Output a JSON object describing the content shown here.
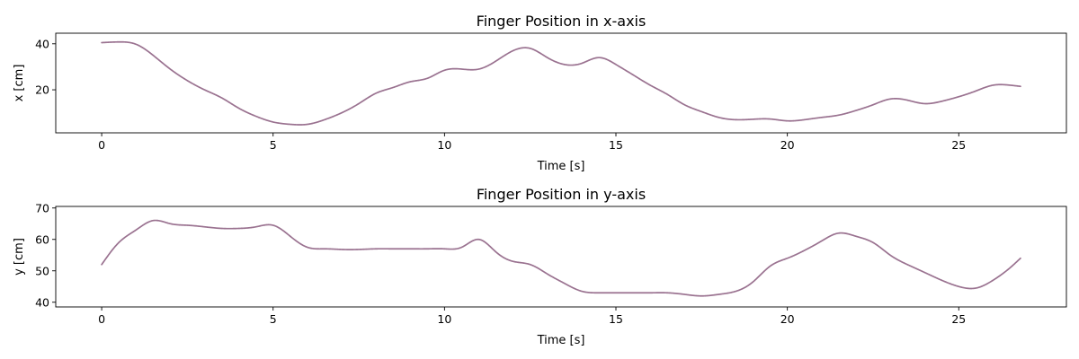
{
  "chart_data": [
    {
      "type": "line",
      "title": "Finger Position in x-axis",
      "xlabel": "Time [s]",
      "ylabel": "x [cm]",
      "xlim": [
        -1.34,
        28.14
      ],
      "ylim": [
        1.3,
        44.6
      ],
      "xticks": [
        0,
        5,
        10,
        15,
        20,
        25
      ],
      "xtick_labels": [
        "0",
        "5",
        "10",
        "15",
        "20",
        "25"
      ],
      "yticks": [
        20,
        40
      ],
      "ytick_labels": [
        "20",
        "40"
      ],
      "color": "#9a7290",
      "grid": false,
      "series": [
        {
          "x": [
            0,
            0.5,
            1,
            1.5,
            2,
            2.5,
            3,
            3.5,
            4,
            4.5,
            5,
            5.5,
            6,
            6.5,
            7,
            7.5,
            8,
            8.5,
            9,
            9.5,
            10,
            10.5,
            11,
            11.5,
            12,
            12.5,
            13,
            13.5,
            14,
            14.5,
            15,
            15.5,
            16,
            16.5,
            17,
            17.5,
            18,
            18.5,
            19,
            19.5,
            20,
            20.5,
            21,
            21.5,
            22,
            22.5,
            23,
            23.5,
            24,
            24.5,
            25,
            25.5,
            26,
            26.5,
            26.8
          ],
          "values": [
            40.5,
            40.8,
            39.8,
            35,
            29,
            24,
            20,
            16.5,
            12,
            8.5,
            6,
            5,
            5,
            7,
            10,
            14,
            18.5,
            21,
            23.5,
            25,
            28.5,
            29,
            29,
            32.5,
            37,
            38,
            34,
            31,
            31.5,
            34,
            31,
            26.5,
            22,
            18,
            13.5,
            10.5,
            8,
            7,
            7.2,
            7.3,
            6.5,
            7,
            8,
            9,
            11,
            13.5,
            16,
            15.5,
            14,
            15,
            17,
            19.5,
            22,
            22,
            21.5
          ]
        }
      ]
    },
    {
      "type": "line",
      "title": "Finger Position in y-axis",
      "xlabel": "Time [s]",
      "ylabel": "y [cm]",
      "xlim": [
        -1.34,
        28.14
      ],
      "ylim": [
        38.5,
        70.5
      ],
      "xticks": [
        0,
        5,
        10,
        15,
        20,
        25
      ],
      "xtick_labels": [
        "0",
        "5",
        "10",
        "15",
        "20",
        "25"
      ],
      "yticks": [
        40,
        50,
        60,
        70
      ],
      "ytick_labels": [
        "40",
        "50",
        "60",
        "70"
      ],
      "color": "#9a7290",
      "grid": false,
      "series": [
        {
          "x": [
            0,
            0.5,
            1,
            1.5,
            2,
            2.5,
            3,
            3.5,
            4,
            4.5,
            5,
            5.5,
            6,
            6.5,
            7,
            7.5,
            8,
            8.5,
            9,
            9.5,
            10,
            10.5,
            11,
            11.5,
            12,
            12.5,
            13,
            13.5,
            14,
            14.5,
            15,
            15.5,
            16,
            16.5,
            17,
            17.5,
            18,
            18.5,
            19,
            19.5,
            20,
            20.5,
            21,
            21.5,
            22,
            22.5,
            23,
            23.5,
            24,
            24.5,
            25,
            25.5,
            26,
            26.5,
            26.8
          ],
          "values": [
            52,
            59,
            63,
            66,
            65,
            64.5,
            64,
            63.5,
            63.5,
            64,
            64.5,
            61,
            57.5,
            57,
            56.8,
            56.8,
            57,
            57,
            57,
            57,
            57,
            57.5,
            60,
            56,
            53,
            52,
            49,
            46,
            43.5,
            43,
            43,
            43,
            43,
            43,
            42.5,
            42,
            42.5,
            43.5,
            46.5,
            51.5,
            54,
            56.5,
            59.5,
            62,
            61,
            59,
            55,
            52,
            49.5,
            47,
            45,
            44.5,
            47,
            51,
            54
          ]
        }
      ]
    }
  ]
}
